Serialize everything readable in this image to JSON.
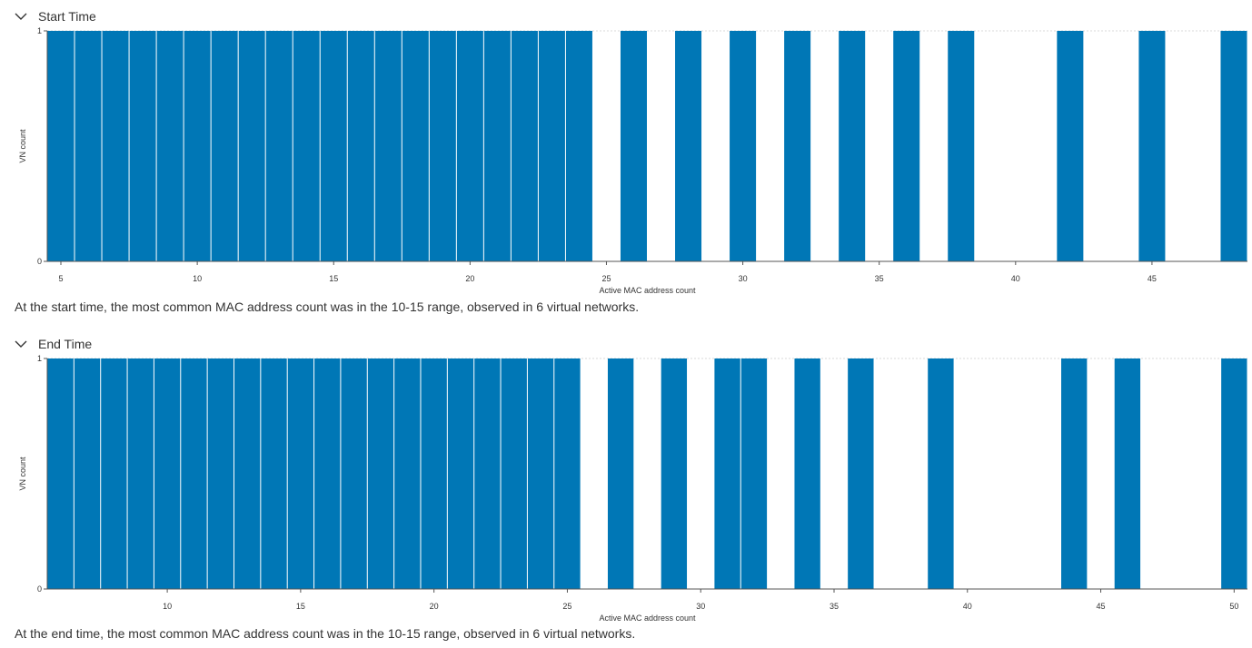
{
  "panels": [
    {
      "title": "Start Time",
      "summary": "At the start time, the most common MAC address count was in the 10-15 range, observed in 6 virtual networks."
    },
    {
      "title": "End Time",
      "summary": "At the end time, the most common MAC address count was in the 10-15 range, observed in 6 virtual networks."
    }
  ],
  "icons": {
    "collapse": "chevron-down-icon"
  },
  "colors": {
    "bar": "#0077b6",
    "grid": "#d9d9d9",
    "axis": "#555555",
    "text": "#333333"
  },
  "chart_data": [
    {
      "type": "bar",
      "xlabel": "Active MAC address count",
      "ylabel": "VN count",
      "ylim": [
        0,
        1
      ],
      "yticks": [
        "0",
        "1"
      ],
      "xlim": [
        4.5,
        48.5
      ],
      "xticks": [
        5,
        10,
        15,
        20,
        25,
        30,
        35,
        40,
        45
      ],
      "x": [
        5,
        6,
        7,
        8,
        9,
        10,
        11,
        12,
        13,
        14,
        15,
        16,
        17,
        18,
        19,
        20,
        21,
        22,
        23,
        24,
        26,
        28,
        30,
        32,
        34,
        36,
        38,
        42,
        45,
        48
      ],
      "values": [
        1,
        1,
        1,
        1,
        1,
        1,
        1,
        1,
        1,
        1,
        1,
        1,
        1,
        1,
        1,
        1,
        1,
        1,
        1,
        1,
        1,
        1,
        1,
        1,
        1,
        1,
        1,
        1,
        1,
        1
      ]
    },
    {
      "type": "bar",
      "xlabel": "Active MAC address count",
      "ylabel": "VN count",
      "ylim": [
        0,
        1
      ],
      "yticks": [
        "0",
        "1"
      ],
      "xlim": [
        5.5,
        50.5
      ],
      "xticks": [
        10,
        15,
        20,
        25,
        30,
        35,
        40,
        45,
        50
      ],
      "x": [
        6,
        7,
        8,
        9,
        10,
        11,
        12,
        13,
        14,
        15,
        16,
        17,
        18,
        19,
        20,
        21,
        22,
        23,
        24,
        25,
        27,
        29,
        31,
        32,
        34,
        36,
        39,
        44,
        46,
        50
      ],
      "values": [
        1,
        1,
        1,
        1,
        1,
        1,
        1,
        1,
        1,
        1,
        1,
        1,
        1,
        1,
        1,
        1,
        1,
        1,
        1,
        1,
        1,
        1,
        1,
        1,
        1,
        1,
        1,
        1,
        1,
        1
      ]
    }
  ]
}
